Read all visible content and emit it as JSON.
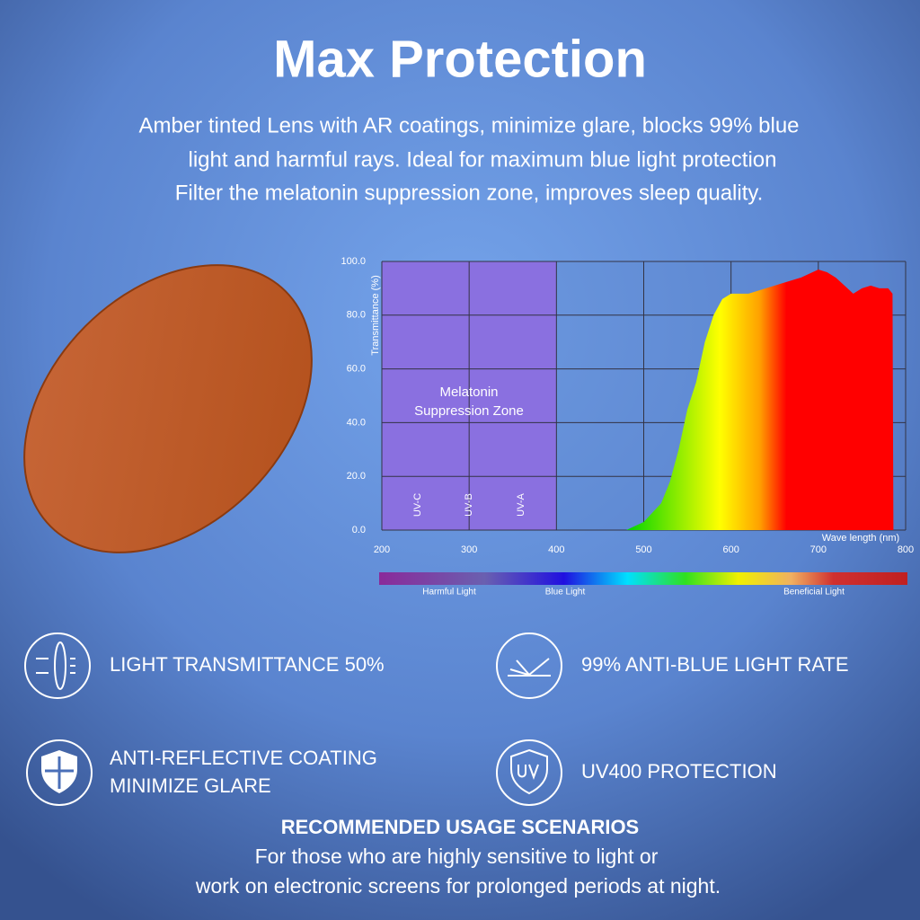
{
  "header": {
    "title": "Max Protection",
    "description": [
      "Amber tinted Lens with AR coatings, minimize glare, blocks 99% blue",
      "light and harmful rays. Ideal for maximum blue light protection",
      "Filter the melatonin suppression zone, improves sleep quality."
    ]
  },
  "chart_data": {
    "type": "area",
    "y_label": "Transmittance (%)",
    "x_label": "Wave length (nm)",
    "xlim": [
      200,
      800
    ],
    "ylim": [
      0,
      100
    ],
    "xticks": [
      200,
      300,
      400,
      500,
      600,
      700,
      800
    ],
    "yticks": [
      {
        "value": 0,
        "label": "0.0"
      },
      {
        "value": 20,
        "label": "20.0"
      },
      {
        "value": 40,
        "label": "40.0"
      },
      {
        "value": 60,
        "label": "60.0"
      },
      {
        "value": 80,
        "label": "80.0"
      },
      {
        "value": 100,
        "label": "100.0"
      }
    ],
    "grid": true,
    "highlight_range": [
      200,
      400
    ],
    "highlight_color": "#8a70e0",
    "annotations": [
      "Melatonin",
      "Suppression Zone"
    ],
    "zone_labels": [
      "UV-C",
      "UV-B",
      "UV-A"
    ],
    "colors": [
      "#00d400",
      "#ffff00",
      "#ffa000",
      "#ff0000"
    ],
    "x": [
      480,
      500,
      520,
      530,
      540,
      550,
      560,
      570,
      580,
      590,
      600,
      620,
      640,
      660,
      680,
      700,
      710,
      720,
      730,
      740,
      750,
      760,
      770,
      780,
      785,
      786
    ],
    "values": [
      0,
      3,
      10,
      18,
      30,
      45,
      55,
      70,
      80,
      86,
      88,
      88,
      90,
      92,
      94,
      97,
      96,
      94,
      91,
      88,
      90,
      91,
      90,
      90,
      88,
      0
    ]
  },
  "spectrum_bar": {
    "labels": [
      "Harmful Light",
      "Blue Light",
      "Beneficial Light"
    ]
  },
  "features": [
    {
      "lines": [
        "LIGHT TRANSMITTANCE 50%"
      ]
    },
    {
      "lines": [
        "99% ANTI-BLUE LIGHT RATE"
      ]
    },
    {
      "lines": [
        "ANTI-REFLECTIVE COATING",
        "MINIMIZE GLARE"
      ]
    },
    {
      "lines": [
        "UV400 PROTECTION"
      ]
    }
  ],
  "footer": {
    "title": "RECOMMENDED USAGE SCENARIOS",
    "lines": [
      "For those who are highly sensitive to light or",
      "work on electronic screens for prolonged periods at night."
    ]
  }
}
